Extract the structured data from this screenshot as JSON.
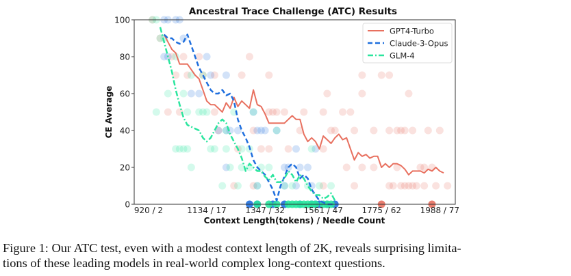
{
  "chart_data": {
    "type": "line",
    "title": "Ancestral Trace Challenge (ATC) Results",
    "xlabel": "Context Length(tokens) / Needle Count",
    "ylabel": "CE Average",
    "xlim": [
      -1.7,
      81
    ],
    "ylim": [
      0,
      100
    ],
    "x_ticks": [
      {
        "value": 2,
        "label": "920 / 2"
      },
      {
        "value": 17,
        "label": "1134 / 17"
      },
      {
        "value": 32,
        "label": "1347 / 32"
      },
      {
        "value": 47,
        "label": "1561 / 47"
      },
      {
        "value": 62,
        "label": "1775 / 62"
      },
      {
        "value": 77,
        "label": "1988 / 77"
      }
    ],
    "y_ticks": [
      0,
      20,
      40,
      60,
      80,
      100
    ],
    "legend_position": "top-right",
    "grid": false,
    "series": [
      {
        "name": "GPT4-Turbo",
        "color": "#e8705f",
        "style": "solid",
        "x": [
          6,
          7,
          8,
          9,
          10,
          11,
          12,
          13,
          14,
          15,
          16,
          17,
          18,
          19,
          20,
          21,
          22,
          23,
          24,
          25,
          26,
          27,
          28,
          29,
          30,
          31,
          32,
          33,
          34,
          35,
          36,
          37,
          38,
          39,
          40,
          41,
          42,
          43,
          44,
          45,
          46,
          47,
          48,
          49,
          50,
          51,
          52,
          53,
          54,
          55,
          56,
          57,
          58,
          59,
          60,
          61,
          62,
          63,
          64,
          65,
          66,
          67,
          68,
          69,
          70,
          71,
          72,
          73,
          74,
          75,
          76,
          77,
          78
        ],
        "y": [
          92,
          88,
          84,
          82,
          76,
          76,
          76,
          73,
          70,
          68,
          62,
          56,
          54,
          54,
          52,
          50,
          55,
          52,
          58,
          53,
          56,
          54,
          52,
          62,
          54,
          53,
          49,
          44,
          44,
          44,
          44,
          44,
          46,
          48,
          46,
          46,
          38,
          34,
          36,
          34,
          30,
          37,
          35,
          33,
          36,
          38,
          35,
          36,
          30,
          24,
          28,
          26,
          27,
          25,
          26,
          26,
          20,
          22,
          20,
          22,
          22,
          21,
          19,
          16,
          18,
          18,
          18,
          17,
          19,
          18,
          20,
          18,
          17
        ]
      },
      {
        "name": "Claude-3-Opus",
        "color": "#1f6fde",
        "style": "dashed",
        "x": [
          6,
          7,
          8,
          9,
          10,
          11,
          12,
          13,
          14,
          15,
          16,
          17,
          18,
          19,
          20,
          21,
          22,
          23,
          24,
          25,
          26,
          27,
          28,
          29,
          30,
          31,
          32,
          33,
          34,
          35,
          36,
          37,
          38,
          39,
          40,
          41,
          42,
          43,
          44,
          45,
          46,
          47,
          48,
          49,
          50
        ],
        "y": [
          92,
          90,
          90,
          88,
          87,
          88,
          92,
          86,
          80,
          74,
          70,
          66,
          62,
          60,
          60,
          62,
          59,
          60,
          56,
          46,
          40,
          36,
          31,
          24,
          20,
          18,
          16,
          12,
          8,
          2,
          10,
          15,
          20,
          22,
          20,
          14,
          16,
          14,
          8,
          5,
          2,
          1,
          0,
          0,
          0
        ]
      },
      {
        "name": "GLM-4",
        "color": "#2ae59e",
        "style": "dashdot",
        "x": [
          5,
          6,
          7,
          8,
          9,
          10,
          11,
          12,
          13,
          14,
          15,
          16,
          17,
          18,
          19,
          20,
          21,
          22,
          23,
          24,
          25,
          26,
          27,
          28,
          29,
          30,
          31,
          32,
          33,
          34,
          35,
          36,
          37,
          38,
          39,
          40,
          41,
          42,
          43,
          44,
          45,
          46,
          47,
          48,
          49,
          50
        ],
        "y": [
          96,
          88,
          80,
          72,
          62,
          54,
          47,
          43,
          42,
          41,
          40,
          36,
          34,
          36,
          40,
          44,
          46,
          44,
          38,
          34,
          30,
          25,
          18,
          22,
          20,
          18,
          18,
          15,
          13,
          16,
          12,
          12,
          14,
          18,
          16,
          12,
          16,
          14,
          10,
          7,
          5,
          5,
          3,
          4,
          6,
          2
        ]
      }
    ],
    "scatter_points": {
      "GPT4-Turbo": [
        [
          3,
          100
        ],
        [
          5,
          90
        ],
        [
          8,
          80
        ],
        [
          11,
          80
        ],
        [
          15,
          80
        ],
        [
          28,
          80
        ],
        [
          9,
          70
        ],
        [
          12,
          70
        ],
        [
          16,
          70
        ],
        [
          19,
          70
        ],
        [
          26,
          70
        ],
        [
          33,
          70
        ],
        [
          48,
          60
        ],
        [
          7,
          50
        ],
        [
          10,
          50
        ],
        [
          19,
          50
        ],
        [
          33,
          50
        ],
        [
          34,
          50
        ],
        [
          35,
          50
        ],
        [
          37,
          50
        ],
        [
          42,
          50
        ],
        [
          47,
          50
        ],
        [
          52,
          50
        ],
        [
          54,
          50
        ],
        [
          57,
          60
        ],
        [
          57,
          70
        ],
        [
          62,
          70
        ],
        [
          64,
          70
        ],
        [
          69,
          60
        ],
        [
          20,
          40
        ],
        [
          29,
          40
        ],
        [
          41,
          40
        ],
        [
          49,
          40
        ],
        [
          50,
          40
        ],
        [
          55,
          40
        ],
        [
          60,
          40
        ],
        [
          64,
          40
        ],
        [
          66,
          40
        ],
        [
          67,
          40
        ],
        [
          68,
          40
        ],
        [
          70,
          40
        ],
        [
          74,
          40
        ],
        [
          77,
          40
        ],
        [
          25,
          30
        ],
        [
          31,
          30
        ],
        [
          33,
          30
        ],
        [
          38,
          30
        ],
        [
          47,
          30
        ],
        [
          53,
          20
        ],
        [
          57,
          20
        ],
        [
          75,
          20
        ],
        [
          73,
          20
        ],
        [
          24,
          10
        ],
        [
          29,
          10
        ],
        [
          47,
          10
        ],
        [
          55,
          10
        ],
        [
          64,
          10
        ],
        [
          65,
          10
        ],
        [
          67,
          10
        ],
        [
          68,
          10
        ],
        [
          69,
          10
        ],
        [
          70,
          10
        ],
        [
          71,
          10
        ],
        [
          73,
          10
        ],
        [
          76,
          10
        ],
        [
          79,
          10
        ],
        [
          60,
          20
        ],
        [
          66,
          20
        ],
        [
          72,
          20
        ],
        [
          62,
          0
        ],
        [
          75,
          0
        ]
      ],
      "Claude-3-Opus": [
        [
          6,
          100
        ],
        [
          7,
          100
        ],
        [
          9,
          100
        ],
        [
          10,
          100
        ],
        [
          6,
          80
        ],
        [
          7,
          80
        ],
        [
          17,
          80
        ],
        [
          11,
          90
        ],
        [
          18,
          70
        ],
        [
          22,
          70
        ],
        [
          13,
          60
        ],
        [
          15,
          60
        ],
        [
          20,
          40
        ],
        [
          22,
          40
        ],
        [
          23,
          40
        ],
        [
          25,
          40
        ],
        [
          29,
          50
        ],
        [
          30,
          40
        ],
        [
          31,
          40
        ],
        [
          32,
          40
        ],
        [
          35,
          40
        ],
        [
          40,
          30
        ],
        [
          45,
          30
        ],
        [
          37,
          20
        ],
        [
          38,
          20
        ],
        [
          41,
          20
        ],
        [
          43,
          20
        ],
        [
          22,
          20
        ],
        [
          30,
          10
        ],
        [
          37,
          10
        ],
        [
          44,
          10
        ],
        [
          40,
          10
        ],
        [
          28,
          0
        ],
        [
          30,
          0
        ],
        [
          34,
          0
        ],
        [
          37,
          0
        ],
        [
          41,
          0
        ],
        [
          44,
          0
        ],
        [
          45,
          0
        ],
        [
          46,
          0
        ],
        [
          48,
          0
        ],
        [
          50,
          0
        ]
      ],
      "GLM-4": [
        [
          3,
          100
        ],
        [
          4,
          100
        ],
        [
          5,
          90
        ],
        [
          6,
          90
        ],
        [
          9,
          80
        ],
        [
          13,
          70
        ],
        [
          16,
          70
        ],
        [
          7,
          60
        ],
        [
          11,
          60
        ],
        [
          4,
          50
        ],
        [
          12,
          50
        ],
        [
          15,
          50
        ],
        [
          16,
          50
        ],
        [
          17,
          50
        ],
        [
          24,
          50
        ],
        [
          29,
          50
        ],
        [
          35,
          40
        ],
        [
          22,
          40
        ],
        [
          9,
          30
        ],
        [
          10,
          30
        ],
        [
          11,
          30
        ],
        [
          12,
          30
        ],
        [
          18,
          30
        ],
        [
          19,
          30
        ],
        [
          22,
          30
        ],
        [
          26,
          30
        ],
        [
          28,
          30
        ],
        [
          23,
          20
        ],
        [
          26,
          20
        ],
        [
          13,
          20
        ],
        [
          28,
          20
        ],
        [
          31,
          20
        ],
        [
          33,
          20
        ],
        [
          44,
          30
        ],
        [
          21,
          10
        ],
        [
          25,
          10
        ],
        [
          30,
          10
        ],
        [
          37,
          10
        ],
        [
          39,
          10
        ],
        [
          43,
          10
        ],
        [
          46,
          10
        ],
        [
          49,
          10
        ],
        [
          30,
          0
        ],
        [
          33,
          0
        ],
        [
          35,
          0
        ],
        [
          38,
          0
        ],
        [
          39,
          0
        ],
        [
          40,
          0
        ],
        [
          41,
          0
        ],
        [
          42,
          0
        ],
        [
          43,
          0
        ],
        [
          44,
          0
        ],
        [
          45,
          0
        ],
        [
          47,
          0
        ],
        [
          48,
          0
        ],
        [
          49,
          0
        ]
      ]
    }
  },
  "caption": {
    "line1": "Figure 1: Our ATC test, even with a modest context length of 2K, reveals surprising limita-",
    "line2": "tions of these leading models in real-world complex long-context questions."
  }
}
